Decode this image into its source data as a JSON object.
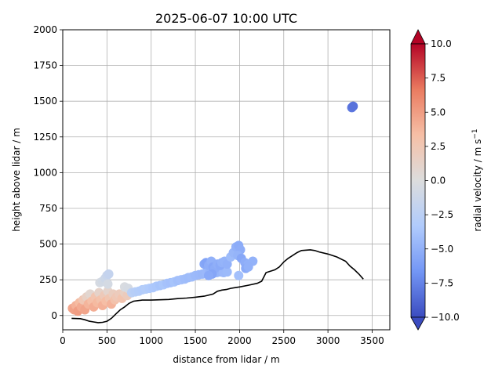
{
  "chart_data": {
    "type": "scatter",
    "title": "2025-06-07 10:00 UTC",
    "xlabel": "distance from lidar / m",
    "ylabel": "height above lidar / m",
    "xlim": [
      0,
      3700
    ],
    "ylim": [
      -100,
      2000
    ],
    "xticks": [
      "0",
      "500",
      "1000",
      "1500",
      "2000",
      "2500",
      "3000",
      "3500"
    ],
    "yticks": [
      "0",
      "250",
      "500",
      "750",
      "1000",
      "1250",
      "1500",
      "1750",
      "2000"
    ],
    "grid": true,
    "colorbar": {
      "label": "radial velocity / m s",
      "label_superscript": "−1",
      "range": [
        -10,
        10
      ],
      "ticks": [
        "−10.0",
        "−7.5",
        "−5.0",
        "−2.5",
        "0.0",
        "2.5",
        "5.0",
        "7.5",
        "10.0"
      ],
      "colormap": "coolwarm",
      "colors": [
        "#3b4cc0",
        "#7396f5",
        "#b0cbfc",
        "#dcdddd",
        "#f6bfa6",
        "#ea7b60",
        "#b40426"
      ]
    },
    "terrain": [
      [
        100,
        -20
      ],
      [
        200,
        -22
      ],
      [
        250,
        -30
      ],
      [
        300,
        -40
      ],
      [
        350,
        -45
      ],
      [
        400,
        -50
      ],
      [
        450,
        -48
      ],
      [
        500,
        -40
      ],
      [
        550,
        -20
      ],
      [
        600,
        10
      ],
      [
        650,
        40
      ],
      [
        700,
        60
      ],
      [
        750,
        85
      ],
      [
        800,
        100
      ],
      [
        900,
        108
      ],
      [
        1000,
        108
      ],
      [
        1100,
        110
      ],
      [
        1200,
        112
      ],
      [
        1300,
        118
      ],
      [
        1400,
        122
      ],
      [
        1500,
        128
      ],
      [
        1600,
        135
      ],
      [
        1700,
        150
      ],
      [
        1750,
        170
      ],
      [
        1800,
        178
      ],
      [
        1850,
        182
      ],
      [
        1900,
        190
      ],
      [
        1950,
        195
      ],
      [
        2000,
        200
      ],
      [
        2100,
        212
      ],
      [
        2200,
        225
      ],
      [
        2250,
        240
      ],
      [
        2300,
        300
      ],
      [
        2400,
        320
      ],
      [
        2450,
        340
      ],
      [
        2500,
        375
      ],
      [
        2550,
        400
      ],
      [
        2600,
        420
      ],
      [
        2650,
        440
      ],
      [
        2700,
        455
      ],
      [
        2800,
        460
      ],
      [
        2850,
        455
      ],
      [
        2900,
        445
      ],
      [
        3000,
        430
      ],
      [
        3100,
        410
      ],
      [
        3200,
        380
      ],
      [
        3250,
        345
      ],
      [
        3300,
        320
      ],
      [
        3350,
        290
      ],
      [
        3400,
        255
      ]
    ],
    "points": [
      {
        "x": 110,
        "y": 50,
        "v": 4.5
      },
      {
        "x": 130,
        "y": 40,
        "v": 4.8
      },
      {
        "x": 150,
        "y": 70,
        "v": 4.0
      },
      {
        "x": 170,
        "y": 30,
        "v": 5.0
      },
      {
        "x": 190,
        "y": 90,
        "v": 3.5
      },
      {
        "x": 210,
        "y": 60,
        "v": 4.3
      },
      {
        "x": 230,
        "y": 110,
        "v": 2.5
      },
      {
        "x": 250,
        "y": 40,
        "v": 4.6
      },
      {
        "x": 270,
        "y": 130,
        "v": 1.5
      },
      {
        "x": 290,
        "y": 80,
        "v": 3.8
      },
      {
        "x": 310,
        "y": 150,
        "v": 0.8
      },
      {
        "x": 330,
        "y": 100,
        "v": 3.2
      },
      {
        "x": 350,
        "y": 60,
        "v": 4.2
      },
      {
        "x": 370,
        "y": 130,
        "v": 2.8
      },
      {
        "x": 390,
        "y": 90,
        "v": 3.6
      },
      {
        "x": 410,
        "y": 160,
        "v": 1.2
      },
      {
        "x": 430,
        "y": 110,
        "v": 3.0
      },
      {
        "x": 450,
        "y": 70,
        "v": 4.0
      },
      {
        "x": 470,
        "y": 140,
        "v": 2.2
      },
      {
        "x": 490,
        "y": 100,
        "v": 3.4
      },
      {
        "x": 510,
        "y": 170,
        "v": 1.0
      },
      {
        "x": 530,
        "y": 120,
        "v": 2.6
      },
      {
        "x": 550,
        "y": 80,
        "v": 3.9
      },
      {
        "x": 570,
        "y": 150,
        "v": 1.8
      },
      {
        "x": 590,
        "y": 110,
        "v": 3.0
      },
      {
        "x": 610,
        "y": 130,
        "v": 2.4
      },
      {
        "x": 640,
        "y": 150,
        "v": 2.0
      },
      {
        "x": 670,
        "y": 120,
        "v": 2.8
      },
      {
        "x": 700,
        "y": 160,
        "v": 1.5
      },
      {
        "x": 730,
        "y": 140,
        "v": 2.0
      },
      {
        "x": 420,
        "y": 230,
        "v": -0.5
      },
      {
        "x": 450,
        "y": 240,
        "v": -0.8
      },
      {
        "x": 480,
        "y": 260,
        "v": -1.2
      },
      {
        "x": 500,
        "y": 280,
        "v": -1.5
      },
      {
        "x": 520,
        "y": 290,
        "v": -1.8
      },
      {
        "x": 510,
        "y": 220,
        "v": -0.6
      },
      {
        "x": 700,
        "y": 200,
        "v": -0.3
      },
      {
        "x": 740,
        "y": 190,
        "v": -0.5
      },
      {
        "x": 780,
        "y": 160,
        "v": -2.5
      },
      {
        "x": 820,
        "y": 165,
        "v": -2.8
      },
      {
        "x": 860,
        "y": 170,
        "v": -3.0
      },
      {
        "x": 900,
        "y": 180,
        "v": -3.2
      },
      {
        "x": 940,
        "y": 185,
        "v": -3.0
      },
      {
        "x": 980,
        "y": 190,
        "v": -3.3
      },
      {
        "x": 1020,
        "y": 195,
        "v": -3.5
      },
      {
        "x": 1060,
        "y": 205,
        "v": -3.6
      },
      {
        "x": 1100,
        "y": 210,
        "v": -3.8
      },
      {
        "x": 1140,
        "y": 215,
        "v": -3.6
      },
      {
        "x": 1180,
        "y": 225,
        "v": -3.9
      },
      {
        "x": 1220,
        "y": 230,
        "v": -4.0
      },
      {
        "x": 1260,
        "y": 235,
        "v": -3.8
      },
      {
        "x": 1300,
        "y": 245,
        "v": -4.1
      },
      {
        "x": 1340,
        "y": 250,
        "v": -4.0
      },
      {
        "x": 1380,
        "y": 255,
        "v": -4.2
      },
      {
        "x": 1420,
        "y": 265,
        "v": -4.3
      },
      {
        "x": 1460,
        "y": 270,
        "v": -4.2
      },
      {
        "x": 1500,
        "y": 280,
        "v": -4.4
      },
      {
        "x": 1540,
        "y": 285,
        "v": -4.5
      },
      {
        "x": 1580,
        "y": 290,
        "v": -4.6
      },
      {
        "x": 1620,
        "y": 300,
        "v": -4.5
      },
      {
        "x": 1660,
        "y": 305,
        "v": -4.8
      },
      {
        "x": 1700,
        "y": 310,
        "v": -4.7
      },
      {
        "x": 1740,
        "y": 300,
        "v": -4.6
      },
      {
        "x": 1780,
        "y": 305,
        "v": -4.8
      },
      {
        "x": 1820,
        "y": 300,
        "v": -4.5
      },
      {
        "x": 1860,
        "y": 305,
        "v": -4.4
      },
      {
        "x": 1600,
        "y": 360,
        "v": -5.5
      },
      {
        "x": 1620,
        "y": 370,
        "v": -5.8
      },
      {
        "x": 1650,
        "y": 350,
        "v": -5.2
      },
      {
        "x": 1680,
        "y": 380,
        "v": -5.0
      },
      {
        "x": 1700,
        "y": 340,
        "v": -5.6
      },
      {
        "x": 1720,
        "y": 330,
        "v": -5.3
      },
      {
        "x": 1750,
        "y": 360,
        "v": -5.1
      },
      {
        "x": 1780,
        "y": 350,
        "v": -5.4
      },
      {
        "x": 1800,
        "y": 370,
        "v": -4.9
      },
      {
        "x": 1830,
        "y": 380,
        "v": -4.8
      },
      {
        "x": 1860,
        "y": 360,
        "v": -5.0
      },
      {
        "x": 1900,
        "y": 410,
        "v": -4.3
      },
      {
        "x": 1930,
        "y": 440,
        "v": -4.6
      },
      {
        "x": 1960,
        "y": 480,
        "v": -5.0
      },
      {
        "x": 1990,
        "y": 490,
        "v": -5.3
      },
      {
        "x": 2010,
        "y": 460,
        "v": -5.2
      },
      {
        "x": 1980,
        "y": 420,
        "v": -4.8
      },
      {
        "x": 2020,
        "y": 400,
        "v": -5.6
      },
      {
        "x": 2060,
        "y": 370,
        "v": -5.2
      },
      {
        "x": 2100,
        "y": 360,
        "v": -5.0
      },
      {
        "x": 2150,
        "y": 380,
        "v": -4.9
      },
      {
        "x": 2070,
        "y": 330,
        "v": -5.4
      },
      {
        "x": 2100,
        "y": 340,
        "v": -5.0
      },
      {
        "x": 1990,
        "y": 280,
        "v": -4.0
      },
      {
        "x": 1690,
        "y": 290,
        "v": -5.7
      },
      {
        "x": 1650,
        "y": 280,
        "v": -5.4
      },
      {
        "x": 3270,
        "y": 1455,
        "v": -8.0
      },
      {
        "x": 3285,
        "y": 1465,
        "v": -8.3
      }
    ]
  }
}
